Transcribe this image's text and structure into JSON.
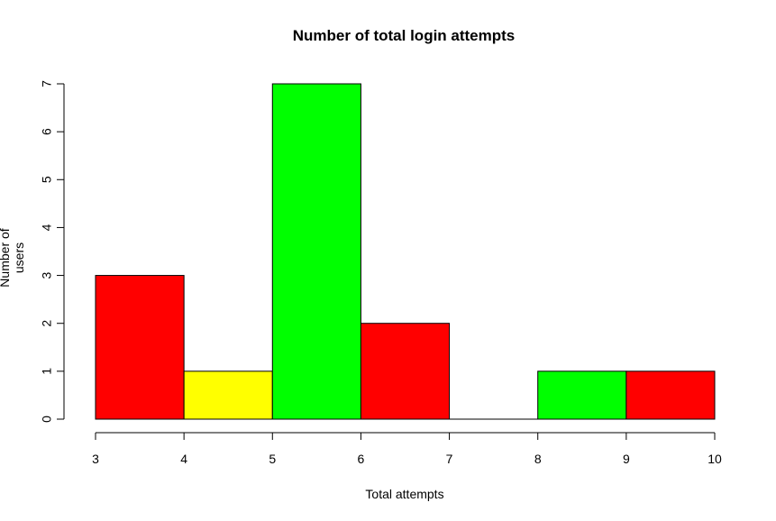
{
  "chart_data": {
    "type": "bar",
    "title": "Number of total login attempts",
    "xlabel": "Total attempts",
    "ylabel": "Number of users",
    "bins": [
      {
        "x0": 3,
        "x1": 4,
        "count": 3,
        "color": "#ff0000"
      },
      {
        "x0": 4,
        "x1": 5,
        "count": 1,
        "color": "#ffff00"
      },
      {
        "x0": 5,
        "x1": 6,
        "count": 7,
        "color": "#00ff00"
      },
      {
        "x0": 6,
        "x1": 7,
        "count": 2,
        "color": "#ff0000"
      },
      {
        "x0": 7,
        "x1": 8,
        "count": 0,
        "color": "#ffff00"
      },
      {
        "x0": 8,
        "x1": 9,
        "count": 1,
        "color": "#00ff00"
      },
      {
        "x0": 9,
        "x1": 10,
        "count": 1,
        "color": "#ff0000"
      }
    ],
    "xticks": [
      "3",
      "4",
      "5",
      "6",
      "7",
      "8",
      "9",
      "10"
    ],
    "yticks": [
      "0",
      "1",
      "2",
      "3",
      "4",
      "5",
      "6",
      "7"
    ],
    "xlim": [
      3,
      10
    ],
    "ylim": [
      0,
      7
    ],
    "grid": false
  }
}
